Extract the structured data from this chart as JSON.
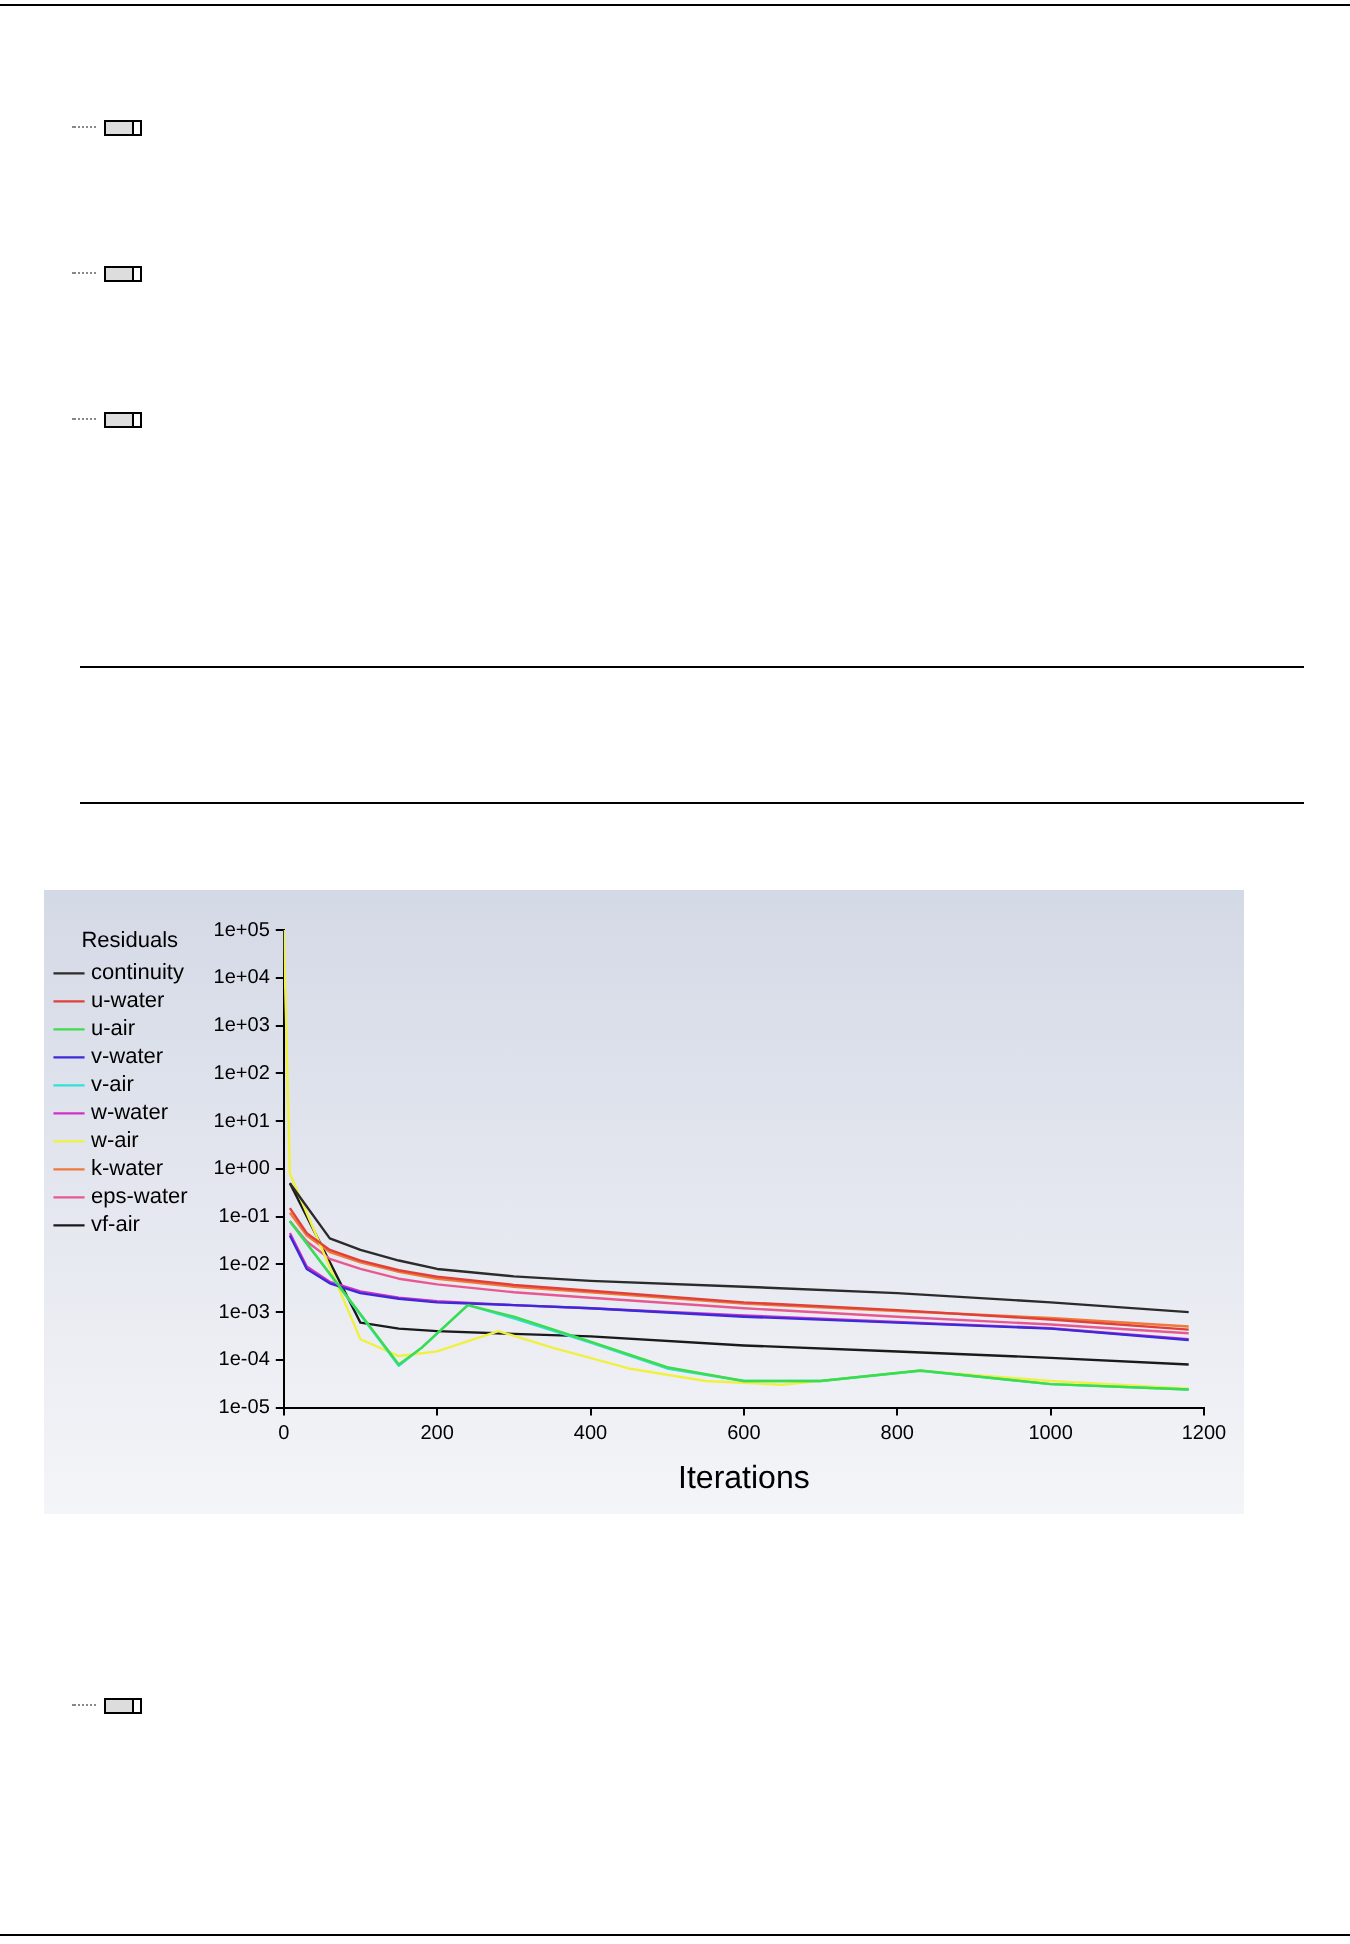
{
  "chart_data": {
    "type": "line",
    "xlabel": "Iterations",
    "legend_title": "Residuals",
    "legend": "top left",
    "log": "y",
    "marker": "none",
    "line_style": "solid",
    "grid": false,
    "xlim": [
      0,
      1200
    ],
    "xticks": [
      0,
      200,
      400,
      600,
      800,
      1000,
      1200
    ],
    "ylim": [
      1e-05,
      100000
    ],
    "yticks": [
      {
        "value": 100000,
        "label": "1e+05"
      },
      {
        "value": 10000,
        "label": "1e+04"
      },
      {
        "value": 1000,
        "label": "1e+03"
      },
      {
        "value": 100,
        "label": "1e+02"
      },
      {
        "value": 10,
        "label": "1e+01"
      },
      {
        "value": 1,
        "label": "1e+00"
      },
      {
        "value": 0.1,
        "label": "1e-01"
      },
      {
        "value": 0.01,
        "label": "1e-02"
      },
      {
        "value": 0.001,
        "label": "1e-03"
      },
      {
        "value": 0.0001,
        "label": "1e-04"
      },
      {
        "value": 1e-05,
        "label": "1e-05"
      }
    ],
    "series": [
      {
        "name": "continuity",
        "color": "#2b2b2b",
        "x": [
          8,
          60,
          100,
          150,
          200,
          300,
          400,
          600,
          800,
          1000,
          1180
        ],
        "values": [
          0.5,
          0.035,
          0.02,
          0.012,
          0.008,
          0.0056,
          0.0045,
          0.0034,
          0.0025,
          0.0016,
          0.001
        ]
      },
      {
        "name": "u-water",
        "color": "#e0403a",
        "x": [
          8,
          30,
          60,
          100,
          150,
          200,
          300,
          400,
          600,
          800,
          1000,
          1180
        ],
        "values": [
          0.15,
          0.045,
          0.02,
          0.012,
          0.0075,
          0.0055,
          0.0037,
          0.0028,
          0.0016,
          0.0011,
          0.0007,
          0.00043
        ]
      },
      {
        "name": "u-air",
        "color": "#3ddc4a",
        "x": [
          8,
          150,
          180,
          240,
          300,
          400,
          500,
          600,
          700,
          830,
          1000,
          1180
        ],
        "values": [
          0.08,
          8e-05,
          0.00018,
          0.0014,
          0.0008,
          0.00024,
          7e-05,
          3.6e-05,
          3.6e-05,
          6e-05,
          3.1e-05,
          2.4e-05
        ]
      },
      {
        "name": "v-water",
        "color": "#3a2ad8",
        "x": [
          8,
          30,
          60,
          100,
          150,
          200,
          300,
          400,
          600,
          800,
          1000,
          1180
        ],
        "values": [
          0.04,
          0.008,
          0.004,
          0.0025,
          0.0019,
          0.0016,
          0.0014,
          0.0012,
          0.0008,
          0.0006,
          0.00045,
          0.00026
        ]
      },
      {
        "name": "v-air",
        "color": "#30e0d8",
        "x": [
          8,
          150,
          180,
          240,
          300,
          400,
          500,
          600,
          700,
          830,
          1000,
          1180
        ],
        "values": [
          0.08,
          7.5e-05,
          0.00018,
          0.0014,
          0.00074,
          0.00023,
          6.6e-05,
          3.6e-05,
          3.6e-05,
          5.9e-05,
          3.1e-05,
          2.4e-05
        ]
      },
      {
        "name": "w-water",
        "color": "#d030c8",
        "x": [
          8,
          30,
          60,
          100,
          150,
          200,
          300,
          400,
          600,
          800,
          1000,
          1180
        ],
        "values": [
          0.045,
          0.009,
          0.0043,
          0.0027,
          0.002,
          0.0017,
          0.0014,
          0.0012,
          0.00085,
          0.00062,
          0.00046,
          0.00027
        ]
      },
      {
        "name": "w-air",
        "color": "#f0f040",
        "x": [
          0,
          8,
          100,
          150,
          200,
          280,
          350,
          450,
          550,
          650,
          830,
          1000,
          1180
        ],
        "values": [
          100000,
          0.8,
          0.00027,
          0.00012,
          0.00015,
          0.0004,
          0.00018,
          6.6e-05,
          3.6e-05,
          3e-05,
          5.9e-05,
          3.6e-05,
          2.5e-05
        ]
      },
      {
        "name": "k-water",
        "color": "#f07838",
        "x": [
          8,
          30,
          60,
          100,
          150,
          200,
          300,
          400,
          600,
          800,
          1000,
          1180
        ],
        "values": [
          0.12,
          0.04,
          0.018,
          0.011,
          0.007,
          0.005,
          0.0034,
          0.0026,
          0.0015,
          0.00105,
          0.00075,
          0.0005
        ]
      },
      {
        "name": "eps-water",
        "color": "#e85890",
        "x": [
          8,
          30,
          60,
          100,
          150,
          200,
          300,
          400,
          600,
          800,
          1000,
          1180
        ],
        "values": [
          0.08,
          0.03,
          0.013,
          0.008,
          0.005,
          0.0038,
          0.0026,
          0.002,
          0.0012,
          0.0008,
          0.00055,
          0.00036
        ]
      },
      {
        "name": "vf-air",
        "color": "#1a1a1a",
        "x": [
          8,
          100,
          150,
          200,
          300,
          400,
          600,
          800,
          1000,
          1180
        ],
        "values": [
          0.5,
          0.0006,
          0.00045,
          0.0004,
          0.00035,
          0.00031,
          0.0002,
          0.00015,
          0.00011,
          8e-05
        ]
      }
    ]
  }
}
